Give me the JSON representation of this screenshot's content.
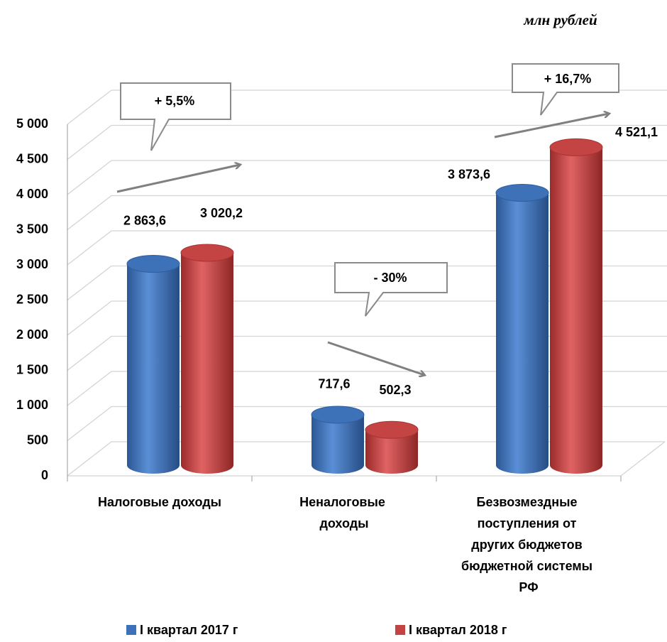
{
  "chart_data": {
    "type": "bar",
    "subtitle": "млн рублей",
    "categories": [
      "Налоговые доходы",
      "Неналоговые доходы",
      "Безвозмездные поступления от других бюджетов бюджетной системы РФ"
    ],
    "series": [
      {
        "name": "I квартал 2017 г",
        "color": "#3e72b8",
        "values": [
          2863.6,
          717.6,
          3873.6
        ],
        "value_labels": [
          "2 863,6",
          "717,6",
          "3 873,6"
        ]
      },
      {
        "name": "I квартал 2018 г",
        "color": "#c44444",
        "values": [
          3020.2,
          502.3,
          4521.1
        ],
        "value_labels": [
          "3 020,2",
          "502,3",
          "4 521,1"
        ]
      }
    ],
    "annotations": [
      "+ 5,5%",
      "- 30%",
      "+ 16,7%"
    ],
    "ylim": [
      0,
      5000
    ],
    "yticks": [
      0,
      500,
      {
        "value": 1000,
        "label": "1 000"
      },
      {
        "value": 1500,
        "label": "1 500"
      },
      {
        "value": 2000,
        "label": "2 000"
      },
      {
        "value": 2500,
        "label": "2 500"
      },
      {
        "value": 3000,
        "label": "3 000"
      },
      {
        "value": 3500,
        "label": "3 500"
      },
      {
        "value": 4000,
        "label": "4 000"
      },
      {
        "value": 4500,
        "label": "4 500"
      },
      {
        "value": 5000,
        "label": "5 000"
      }
    ],
    "grid": true,
    "legend": "bottom"
  }
}
